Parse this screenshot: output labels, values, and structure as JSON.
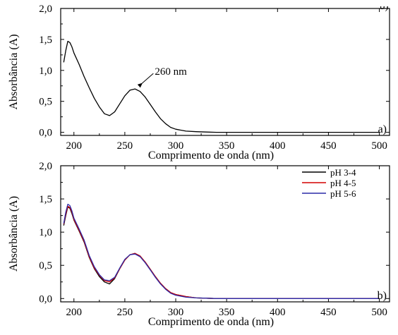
{
  "chart_data": [
    {
      "type": "line",
      "panel_label": "a)",
      "xlabel": "Comprimento de onda (nm)",
      "ylabel": "Absorbância (A)",
      "xlim": [
        187,
        510
      ],
      "ylim": [
        -0.05,
        2.0
      ],
      "xticks": [
        200,
        250,
        300,
        350,
        400,
        450,
        500
      ],
      "yticks": [
        0.0,
        0.5,
        1.0,
        1.5,
        2.0
      ],
      "xtick_labels": [
        "200",
        "250",
        "300",
        "350",
        "400",
        "450",
        "500"
      ],
      "ytick_labels": [
        "0,0",
        "0,5",
        "1,0",
        "1,5",
        "2,0"
      ],
      "corner_mark": "b)",
      "annotations": [
        {
          "text": "260 nm",
          "x": 260,
          "y": 0.7
        }
      ],
      "series": [
        {
          "color": "#000000",
          "x": [
            190,
            192,
            194,
            196,
            198,
            200,
            205,
            210,
            215,
            220,
            225,
            230,
            235,
            240,
            245,
            250,
            255,
            260,
            265,
            270,
            275,
            280,
            285,
            290,
            295,
            300,
            310,
            320,
            330,
            340,
            350,
            400,
            450,
            500
          ],
          "y": [
            1.13,
            1.32,
            1.47,
            1.45,
            1.38,
            1.28,
            1.1,
            0.9,
            0.72,
            0.55,
            0.41,
            0.3,
            0.27,
            0.33,
            0.46,
            0.59,
            0.68,
            0.7,
            0.66,
            0.57,
            0.45,
            0.33,
            0.22,
            0.14,
            0.08,
            0.05,
            0.02,
            0.01,
            0.005,
            0.0,
            0.0,
            0.0,
            0.0,
            0.0
          ]
        }
      ]
    },
    {
      "type": "line",
      "panel_label": "b)",
      "xlabel": "Comprimento de onda (nm)",
      "ylabel": "Absorbância (A)",
      "xlim": [
        187,
        510
      ],
      "ylim": [
        -0.05,
        2.0
      ],
      "xticks": [
        200,
        250,
        300,
        350,
        400,
        450,
        500
      ],
      "yticks": [
        0.0,
        0.5,
        1.0,
        1.5,
        2.0
      ],
      "xtick_labels": [
        "200",
        "250",
        "300",
        "350",
        "400",
        "450",
        "500"
      ],
      "ytick_labels": [
        "0,0",
        "0,5",
        "1,0",
        "1,5",
        "2,0"
      ],
      "legend": {
        "placement": "top-right"
      },
      "series": [
        {
          "name": "pH 3-4",
          "color": "#000000",
          "x": [
            190,
            192,
            194,
            196,
            198,
            200,
            205,
            210,
            215,
            220,
            225,
            230,
            235,
            240,
            245,
            250,
            255,
            260,
            265,
            270,
            275,
            280,
            285,
            290,
            295,
            300,
            310,
            320,
            330,
            340,
            350,
            400,
            450,
            500
          ],
          "y": [
            1.1,
            1.25,
            1.38,
            1.36,
            1.28,
            1.18,
            1.02,
            0.85,
            0.62,
            0.45,
            0.33,
            0.25,
            0.22,
            0.3,
            0.45,
            0.58,
            0.66,
            0.68,
            0.64,
            0.55,
            0.44,
            0.33,
            0.23,
            0.15,
            0.09,
            0.06,
            0.03,
            0.01,
            0.005,
            0.0,
            0.0,
            0.0,
            0.0,
            0.0
          ]
        },
        {
          "name": "pH 4-5",
          "color": "#d40000",
          "x": [
            190,
            192,
            194,
            196,
            198,
            200,
            205,
            210,
            215,
            220,
            225,
            230,
            235,
            240,
            245,
            250,
            255,
            260,
            265,
            270,
            275,
            280,
            285,
            290,
            295,
            300,
            310,
            320,
            330,
            340,
            350,
            400,
            450,
            500
          ],
          "y": [
            1.12,
            1.27,
            1.39,
            1.37,
            1.3,
            1.19,
            1.03,
            0.86,
            0.63,
            0.46,
            0.35,
            0.27,
            0.25,
            0.31,
            0.45,
            0.58,
            0.66,
            0.68,
            0.64,
            0.55,
            0.44,
            0.33,
            0.23,
            0.15,
            0.09,
            0.06,
            0.03,
            0.01,
            0.005,
            0.0,
            0.0,
            0.0,
            0.0,
            0.0
          ]
        },
        {
          "name": "pH 5-6",
          "color": "#2a2aa8",
          "x": [
            190,
            192,
            194,
            196,
            198,
            200,
            205,
            210,
            215,
            220,
            225,
            230,
            235,
            240,
            245,
            250,
            255,
            260,
            265,
            270,
            275,
            280,
            285,
            290,
            295,
            300,
            310,
            320,
            330,
            340,
            350,
            400,
            450,
            500
          ],
          "y": [
            1.13,
            1.3,
            1.42,
            1.4,
            1.32,
            1.21,
            1.05,
            0.88,
            0.65,
            0.48,
            0.36,
            0.28,
            0.27,
            0.32,
            0.46,
            0.59,
            0.66,
            0.67,
            0.63,
            0.54,
            0.43,
            0.32,
            0.22,
            0.14,
            0.08,
            0.05,
            0.02,
            0.01,
            0.005,
            0.0,
            0.0,
            0.0,
            0.0,
            0.0
          ]
        }
      ]
    }
  ]
}
